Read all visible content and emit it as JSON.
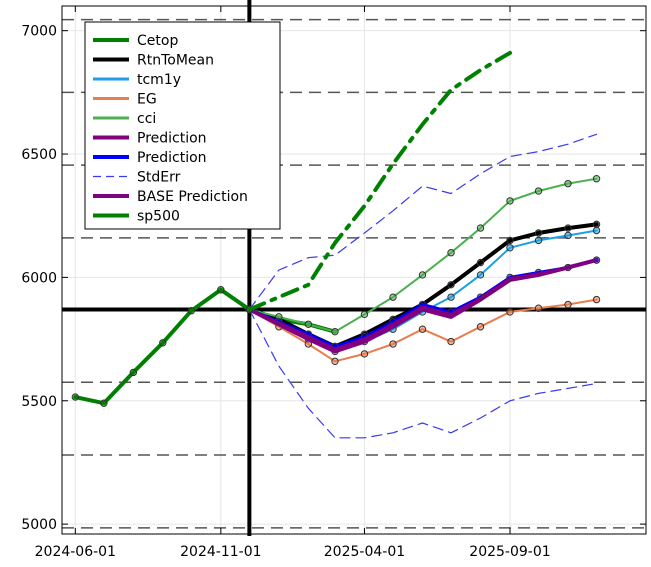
{
  "chart_data": {
    "type": "line",
    "title": "",
    "xlabel": "",
    "ylabel": "",
    "ylim": [
      4960,
      7100
    ],
    "xlim": [
      "2024-05-18",
      "2026-01-22"
    ],
    "grid": true,
    "legend_position": "top-left",
    "y_ticks": [
      5000,
      5500,
      6000,
      6500,
      7000
    ],
    "x_ticks": [
      {
        "date": "2024-06-01",
        "label": "2024-06-01"
      },
      {
        "date": "2024-11-01",
        "label": "2024-11-01"
      },
      {
        "date": "2025-04-01",
        "label": "2025-04-01"
      },
      {
        "date": "2025-09-01",
        "label": "2025-09-01"
      }
    ],
    "reference_lines": {
      "vertical_date": "2024-12-01",
      "horizontal_value": 5870,
      "dashed_levels": [
        4985,
        5280,
        5575,
        6160,
        6455,
        6750,
        7045
      ]
    },
    "series": [
      {
        "name": "Cetop",
        "color": "#008000",
        "style": "solid",
        "width": 4,
        "markers": false,
        "points": [
          [
            "2024-12-01",
            5870
          ],
          [
            "2025-01-01",
            5830
          ],
          [
            "2025-02-01",
            5810
          ],
          [
            "2025-03-01",
            5780
          ]
        ]
      },
      {
        "name": "RtnToMean",
        "color": "#000000",
        "style": "solid",
        "width": 4,
        "markers": true,
        "points": [
          [
            "2024-12-01",
            5870
          ],
          [
            "2025-01-01",
            5830
          ],
          [
            "2025-02-01",
            5770
          ],
          [
            "2025-03-01",
            5720
          ],
          [
            "2025-04-01",
            5770
          ],
          [
            "2025-05-01",
            5830
          ],
          [
            "2025-06-01",
            5890
          ],
          [
            "2025-07-01",
            5970
          ],
          [
            "2025-08-01",
            6060
          ],
          [
            "2025-09-01",
            6150
          ],
          [
            "2025-10-01",
            6180
          ],
          [
            "2025-11-01",
            6200
          ],
          [
            "2025-12-01",
            6215
          ]
        ]
      },
      {
        "name": "tcm1y",
        "color": "#1e9fe6",
        "style": "solid",
        "width": 2,
        "markers": true,
        "points": [
          [
            "2024-12-01",
            5870
          ],
          [
            "2025-01-01",
            5820
          ],
          [
            "2025-02-01",
            5750
          ],
          [
            "2025-03-01",
            5700
          ],
          [
            "2025-04-01",
            5740
          ],
          [
            "2025-05-01",
            5790
          ],
          [
            "2025-06-01",
            5860
          ],
          [
            "2025-07-01",
            5920
          ],
          [
            "2025-08-01",
            6010
          ],
          [
            "2025-09-01",
            6120
          ],
          [
            "2025-10-01",
            6150
          ],
          [
            "2025-11-01",
            6170
          ],
          [
            "2025-12-01",
            6190
          ]
        ]
      },
      {
        "name": "EG",
        "color": "#e87d4f",
        "style": "solid",
        "width": 2,
        "markers": true,
        "points": [
          [
            "2024-12-01",
            5870
          ],
          [
            "2025-01-01",
            5800
          ],
          [
            "2025-02-01",
            5730
          ],
          [
            "2025-03-01",
            5660
          ],
          [
            "2025-04-01",
            5690
          ],
          [
            "2025-05-01",
            5730
          ],
          [
            "2025-06-01",
            5790
          ],
          [
            "2025-07-01",
            5740
          ],
          [
            "2025-08-01",
            5800
          ],
          [
            "2025-09-01",
            5860
          ],
          [
            "2025-10-01",
            5875
          ],
          [
            "2025-11-01",
            5890
          ],
          [
            "2025-12-01",
            5910
          ]
        ]
      },
      {
        "name": "cci",
        "color": "#4caf50",
        "style": "solid",
        "width": 2,
        "markers": true,
        "points": [
          [
            "2024-12-01",
            5870
          ],
          [
            "2025-01-01",
            5840
          ],
          [
            "2025-02-01",
            5810
          ],
          [
            "2025-03-01",
            5780
          ],
          [
            "2025-04-01",
            5850
          ],
          [
            "2025-05-01",
            5920
          ],
          [
            "2025-06-01",
            6010
          ],
          [
            "2025-07-01",
            6100
          ],
          [
            "2025-08-01",
            6200
          ],
          [
            "2025-09-01",
            6310
          ],
          [
            "2025-10-01",
            6350
          ],
          [
            "2025-11-01",
            6380
          ],
          [
            "2025-12-01",
            6400
          ]
        ]
      },
      {
        "name": "Prediction",
        "color": "#800080",
        "style": "solid",
        "width": 4,
        "markers": false,
        "points": [
          [
            "2024-12-01",
            5870
          ],
          [
            "2025-01-01",
            5810
          ],
          [
            "2025-02-01",
            5750
          ],
          [
            "2025-03-01",
            5700
          ],
          [
            "2025-04-01",
            5740
          ],
          [
            "2025-05-01",
            5800
          ],
          [
            "2025-06-01",
            5870
          ],
          [
            "2025-07-01",
            5840
          ],
          [
            "2025-08-01",
            5910
          ],
          [
            "2025-09-01",
            5990
          ],
          [
            "2025-10-01",
            6010
          ],
          [
            "2025-11-01",
            6040
          ],
          [
            "2025-12-01",
            6070
          ]
        ]
      },
      {
        "name": "Prediction",
        "color": "#0000ff",
        "style": "solid",
        "width": 3,
        "markers": true,
        "points": [
          [
            "2024-12-01",
            5870
          ],
          [
            "2025-01-01",
            5820
          ],
          [
            "2025-02-01",
            5770
          ],
          [
            "2025-03-01",
            5720
          ],
          [
            "2025-04-01",
            5760
          ],
          [
            "2025-05-01",
            5820
          ],
          [
            "2025-06-01",
            5890
          ],
          [
            "2025-07-01",
            5860
          ],
          [
            "2025-08-01",
            5920
          ],
          [
            "2025-09-01",
            6000
          ],
          [
            "2025-10-01",
            6020
          ],
          [
            "2025-11-01",
            6040
          ],
          [
            "2025-12-01",
            6070
          ]
        ]
      },
      {
        "name": "StdErr",
        "color": "#3a3af0",
        "style": "dashed",
        "width": 1.2,
        "markers": false,
        "points": [
          [
            "2024-12-01",
            5870
          ],
          [
            "2025-01-01",
            6030
          ],
          [
            "2025-02-01",
            6080
          ],
          [
            "2025-03-01",
            6090
          ],
          [
            "2025-04-01",
            6180
          ],
          [
            "2025-05-01",
            6270
          ],
          [
            "2025-06-01",
            6370
          ],
          [
            "2025-07-01",
            6340
          ],
          [
            "2025-08-01",
            6420
          ],
          [
            "2025-09-01",
            6490
          ],
          [
            "2025-10-01",
            6510
          ],
          [
            "2025-11-01",
            6540
          ],
          [
            "2025-12-01",
            6580
          ]
        ]
      },
      {
        "name": "",
        "color": "#3a3af0",
        "style": "dashed",
        "width": 1.2,
        "markers": false,
        "points": [
          [
            "2024-12-01",
            5870
          ],
          [
            "2025-01-01",
            5640
          ],
          [
            "2025-02-01",
            5470
          ],
          [
            "2025-03-01",
            5350
          ],
          [
            "2025-04-01",
            5350
          ],
          [
            "2025-05-01",
            5370
          ],
          [
            "2025-06-01",
            5410
          ],
          [
            "2025-07-01",
            5370
          ],
          [
            "2025-08-01",
            5430
          ],
          [
            "2025-09-01",
            5500
          ],
          [
            "2025-10-01",
            5530
          ],
          [
            "2025-11-01",
            5550
          ],
          [
            "2025-12-01",
            5570
          ]
        ]
      },
      {
        "name": "BASE Prediction",
        "color": "#800080",
        "style": "solid",
        "width": 3,
        "markers": false,
        "points": [
          [
            "2024-12-01",
            5870
          ],
          [
            "2025-01-01",
            5815
          ],
          [
            "2025-02-01",
            5760
          ],
          [
            "2025-03-01",
            5710
          ],
          [
            "2025-04-01",
            5750
          ],
          [
            "2025-05-01",
            5810
          ],
          [
            "2025-06-01",
            5880
          ],
          [
            "2025-07-01",
            5850
          ],
          [
            "2025-08-01",
            5915
          ],
          [
            "2025-09-01",
            5995
          ],
          [
            "2025-10-01",
            6015
          ],
          [
            "2025-11-01",
            6040
          ],
          [
            "2025-12-01",
            6070
          ]
        ]
      },
      {
        "name": "sp500",
        "color": "#008000",
        "style": "solid",
        "width": 4,
        "markers": true,
        "points": [
          [
            "2024-06-01",
            5515
          ],
          [
            "2024-07-01",
            5490
          ],
          [
            "2024-08-01",
            5615
          ],
          [
            "2024-09-01",
            5735
          ],
          [
            "2024-10-01",
            5865
          ],
          [
            "2024-11-01",
            5950
          ],
          [
            "2024-12-01",
            5870
          ]
        ]
      },
      {
        "name": "",
        "color": "#008000",
        "style": "dashdot",
        "width": 4,
        "markers": false,
        "points": [
          [
            "2024-12-01",
            5870
          ],
          [
            "2025-01-01",
            5920
          ],
          [
            "2025-02-01",
            5970
          ],
          [
            "2025-03-01",
            6140
          ],
          [
            "2025-04-01",
            6290
          ],
          [
            "2025-05-01",
            6460
          ],
          [
            "2025-06-01",
            6620
          ],
          [
            "2025-07-01",
            6760
          ],
          [
            "2025-08-01",
            6840
          ],
          [
            "2025-09-01",
            6910
          ]
        ]
      }
    ],
    "legend": [
      {
        "label": "Cetop",
        "color": "#008000",
        "style": "solid",
        "width": 4
      },
      {
        "label": "RtnToMean",
        "color": "#000000",
        "style": "solid",
        "width": 4
      },
      {
        "label": "tcm1y",
        "color": "#1e9fe6",
        "style": "solid",
        "width": 3
      },
      {
        "label": "EG",
        "color": "#e87d4f",
        "style": "solid",
        "width": 3
      },
      {
        "label": "cci",
        "color": "#4caf50",
        "style": "solid",
        "width": 3
      },
      {
        "label": "Prediction",
        "color": "#800080",
        "style": "solid",
        "width": 4
      },
      {
        "label": "Prediction",
        "color": "#0000ff",
        "style": "solid",
        "width": 4
      },
      {
        "label": "StdErr",
        "color": "#3a3af0",
        "style": "dashed",
        "width": 1.2
      },
      {
        "label": "BASE Prediction",
        "color": "#800080",
        "style": "solid",
        "width": 4
      },
      {
        "label": "sp500",
        "color": "#008000",
        "style": "solid",
        "width": 4
      }
    ]
  }
}
